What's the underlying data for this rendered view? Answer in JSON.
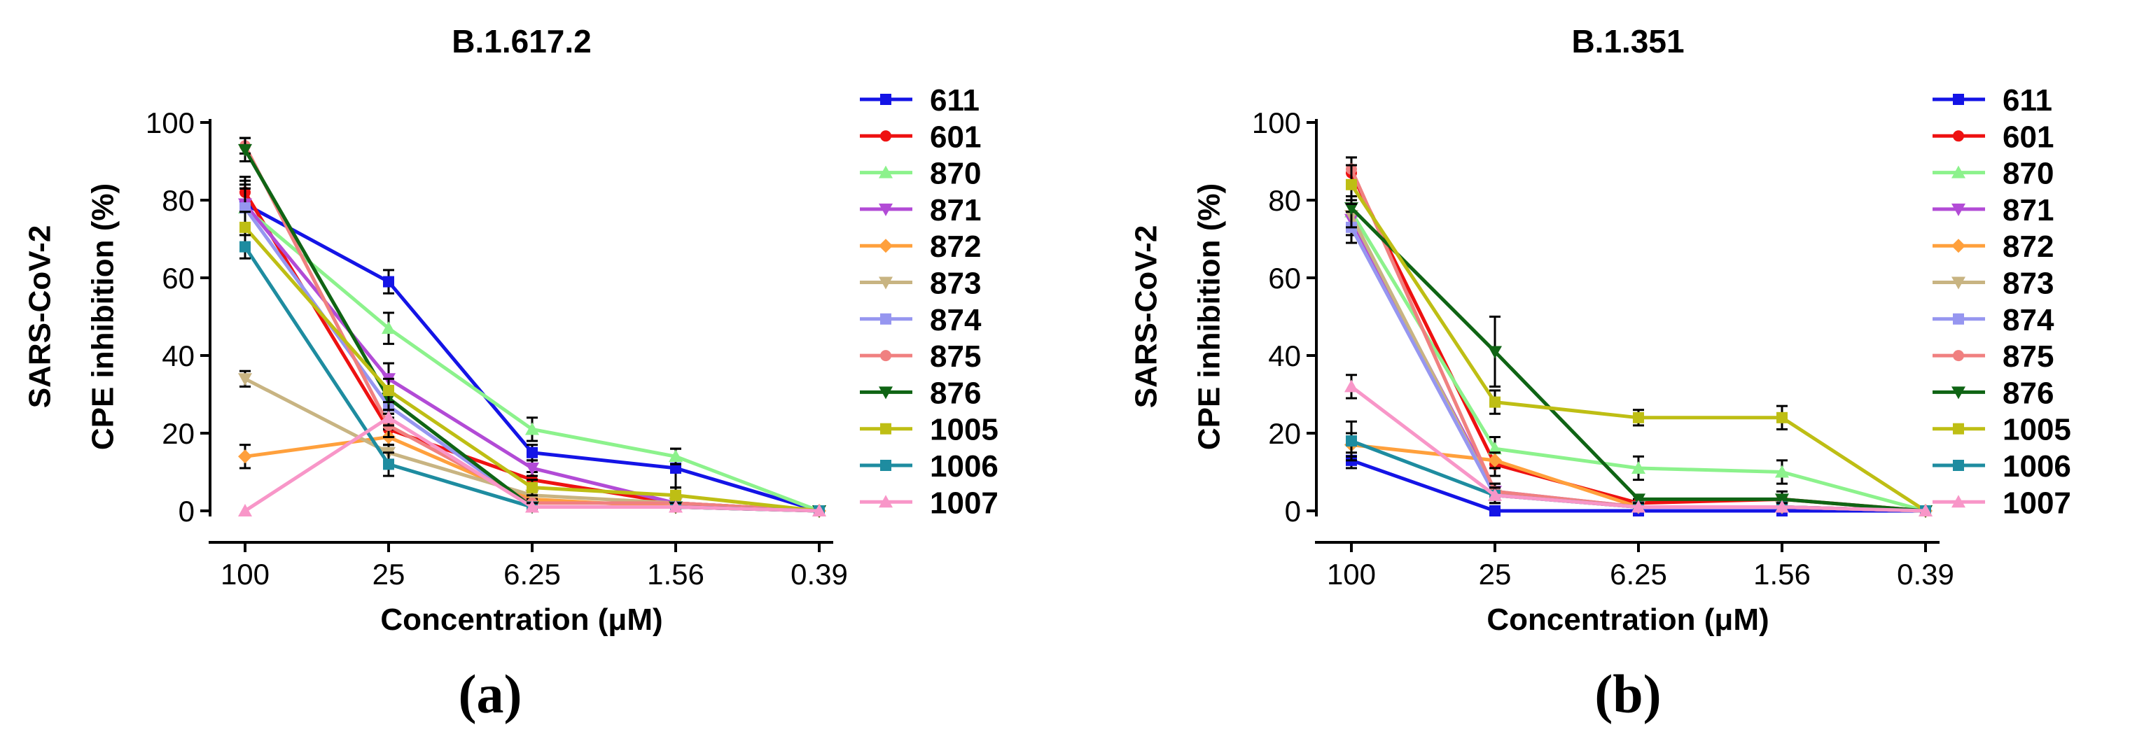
{
  "chart_data": [
    {
      "type": "line",
      "panel_label": "(a)",
      "title": "B.1.617.2",
      "xlabel": "Concentration (μM)",
      "ylabel_lines": [
        "SARS-CoV-2",
        "CPE inhibition (%)"
      ],
      "categories": [
        "100",
        "25",
        "6.25",
        "1.56",
        "0.39"
      ],
      "ylim": [
        0,
        100
      ],
      "yticks": [
        "0",
        "20",
        "40",
        "60",
        "80",
        "100"
      ],
      "series": [
        {
          "name": "611",
          "color": "#1414e6",
          "marker": "square",
          "values": [
            79,
            59,
            15,
            11,
            0
          ],
          "errors": [
            6,
            3,
            2,
            5,
            0
          ]
        },
        {
          "name": "601",
          "color": "#ee1111",
          "marker": "circle",
          "values": [
            82,
            21,
            8,
            2,
            0
          ],
          "errors": [
            4,
            4,
            2,
            2,
            0
          ]
        },
        {
          "name": "870",
          "color": "#8cf28c",
          "marker": "triangle",
          "values": [
            78,
            47,
            21,
            14,
            0
          ],
          "errors": [
            5,
            4,
            3,
            2,
            0
          ]
        },
        {
          "name": "871",
          "color": "#b24bd6",
          "marker": "tri-down",
          "values": [
            79,
            34,
            11,
            2,
            0
          ],
          "errors": [
            5,
            4,
            2,
            2,
            0
          ]
        },
        {
          "name": "872",
          "color": "#ffa03c",
          "marker": "diamond",
          "values": [
            14,
            19,
            3,
            1,
            0
          ],
          "errors": [
            3,
            2,
            1,
            1,
            0
          ]
        },
        {
          "name": "873",
          "color": "#c8b482",
          "marker": "tri-down",
          "values": [
            34,
            15,
            4,
            2,
            0
          ],
          "errors": [
            2,
            2,
            1,
            1,
            0
          ]
        },
        {
          "name": "874",
          "color": "#9696f0",
          "marker": "square",
          "values": [
            78,
            27,
            1,
            1,
            0
          ],
          "errors": [
            5,
            3,
            1,
            1,
            0
          ]
        },
        {
          "name": "875",
          "color": "#f08080",
          "marker": "circle",
          "values": [
            94,
            22,
            2,
            2,
            0
          ],
          "errors": [
            2,
            3,
            1,
            1,
            0
          ]
        },
        {
          "name": "876",
          "color": "#0f6414",
          "marker": "tri-down",
          "values": [
            93,
            29,
            1,
            1,
            0
          ],
          "errors": [
            3,
            3,
            1,
            1,
            0
          ]
        },
        {
          "name": "1005",
          "color": "#bebe14",
          "marker": "square",
          "values": [
            73,
            31,
            6,
            4,
            0
          ],
          "errors": [
            4,
            3,
            2,
            2,
            0
          ]
        },
        {
          "name": "1006",
          "color": "#1e8ca0",
          "marker": "square",
          "values": [
            68,
            12,
            1,
            1,
            0
          ],
          "errors": [
            3,
            3,
            1,
            1,
            0
          ]
        },
        {
          "name": "1007",
          "color": "#f896c8",
          "marker": "triangle",
          "values": [
            0,
            24,
            1,
            1,
            0
          ],
          "errors": [
            0,
            2,
            1,
            1,
            0
          ]
        }
      ]
    },
    {
      "type": "line",
      "panel_label": "(b)",
      "title": "B.1.351",
      "xlabel": "Concentration (μM)",
      "ylabel_lines": [
        "SARS-CoV-2",
        "CPE inhibition (%)"
      ],
      "categories": [
        "100",
        "25",
        "6.25",
        "1.56",
        "0.39"
      ],
      "ylim": [
        0,
        100
      ],
      "yticks": [
        "0",
        "20",
        "40",
        "60",
        "80",
        "100"
      ],
      "series": [
        {
          "name": "611",
          "color": "#1414e6",
          "marker": "square",
          "values": [
            13,
            0,
            0,
            0,
            0
          ],
          "errors": [
            2,
            1,
            1,
            1,
            0
          ]
        },
        {
          "name": "601",
          "color": "#ee1111",
          "marker": "circle",
          "values": [
            87,
            12,
            2,
            3,
            0
          ],
          "errors": [
            4,
            3,
            1,
            2,
            0
          ]
        },
        {
          "name": "870",
          "color": "#8cf28c",
          "marker": "triangle",
          "values": [
            77,
            16,
            11,
            10,
            0
          ],
          "errors": [
            4,
            3,
            3,
            3,
            0
          ]
        },
        {
          "name": "871",
          "color": "#b24bd6",
          "marker": "tri-down",
          "values": [
            75,
            5,
            1,
            1,
            0
          ],
          "errors": [
            4,
            2,
            1,
            1,
            0
          ]
        },
        {
          "name": "872",
          "color": "#ffa03c",
          "marker": "diamond",
          "values": [
            17,
            13,
            1,
            1,
            0
          ],
          "errors": [
            3,
            2,
            1,
            1,
            0
          ]
        },
        {
          "name": "873",
          "color": "#c8b482",
          "marker": "tri-down",
          "values": [
            76,
            4,
            1,
            1,
            0
          ],
          "errors": [
            4,
            2,
            1,
            1,
            0
          ]
        },
        {
          "name": "874",
          "color": "#9696f0",
          "marker": "square",
          "values": [
            73,
            4,
            1,
            1,
            0
          ],
          "errors": [
            4,
            2,
            1,
            1,
            0
          ]
        },
        {
          "name": "875",
          "color": "#f08080",
          "marker": "circle",
          "values": [
            88,
            5,
            1,
            1,
            0
          ],
          "errors": [
            3,
            2,
            1,
            1,
            0
          ]
        },
        {
          "name": "876",
          "color": "#0f6414",
          "marker": "tri-down",
          "values": [
            78,
            41,
            3,
            3,
            0
          ],
          "errors": [
            5,
            9,
            1,
            1,
            0
          ]
        },
        {
          "name": "1005",
          "color": "#bebe14",
          "marker": "square",
          "values": [
            84,
            28,
            24,
            24,
            0
          ],
          "errors": [
            5,
            3,
            2,
            3,
            0
          ]
        },
        {
          "name": "1006",
          "color": "#1e8ca0",
          "marker": "square",
          "values": [
            18,
            4,
            1,
            1,
            0
          ],
          "errors": [
            5,
            2,
            1,
            1,
            0
          ]
        },
        {
          "name": "1007",
          "color": "#f896c8",
          "marker": "triangle",
          "values": [
            32,
            4,
            1,
            1,
            0
          ],
          "errors": [
            3,
            2,
            1,
            1,
            0
          ]
        }
      ]
    }
  ]
}
